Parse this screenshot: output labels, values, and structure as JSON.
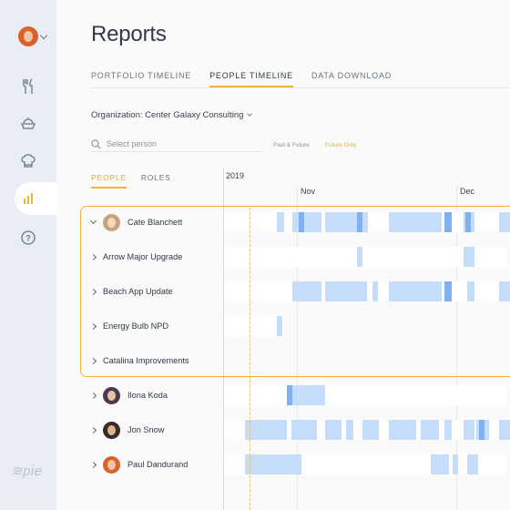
{
  "page": {
    "title": "Reports"
  },
  "colors": {
    "accent": "#f2b233",
    "bar_light": "#c5dcfb",
    "bar_mid": "#a8cbf9",
    "bar_dark": "#7fb1f2"
  },
  "sidebar": {
    "user_avatar": "user-avatar",
    "items": [
      {
        "name": "fork-knife-icon",
        "glyph": "🍴"
      },
      {
        "name": "pie-dish-icon",
        "glyph": "◒"
      },
      {
        "name": "chef-hat-icon",
        "glyph": "♨"
      },
      {
        "name": "reports-bar-chart-icon",
        "glyph": "▮"
      },
      {
        "name": "help-icon",
        "glyph": "?"
      }
    ],
    "logo_text": "pie"
  },
  "tabs": [
    {
      "label": "PORTFOLIO TIMELINE",
      "active": false
    },
    {
      "label": "PEOPLE TIMELINE",
      "active": true
    },
    {
      "label": "DATA DOWNLOAD",
      "active": false
    }
  ],
  "organization": {
    "label": "Organization: Center Galaxy Consulting"
  },
  "search": {
    "placeholder": "Select person"
  },
  "filters": {
    "past_future": "Past & Future",
    "future_only": "Future Only",
    "selected": "Future Only"
  },
  "subtabs": [
    {
      "label": "PEOPLE",
      "active": true
    },
    {
      "label": "ROLES",
      "active": false
    }
  ],
  "timeline": {
    "year": "2019",
    "months": [
      "Nov",
      "Dec"
    ]
  },
  "rows": [
    {
      "label": "Cate Blanchett",
      "type": "person",
      "expanded": true,
      "avatar": "cate-blanchett-avatar"
    },
    {
      "label": "Arrow Major Upgrade",
      "type": "project",
      "expanded": false
    },
    {
      "label": "Beach App Update",
      "type": "project",
      "expanded": false
    },
    {
      "label": "Energy Bulb NPD",
      "type": "project",
      "expanded": false
    },
    {
      "label": "Catalina Improvements",
      "type": "project",
      "expanded": false
    },
    {
      "label": "Ilona Koda",
      "type": "person",
      "expanded": false,
      "avatar": "ilona-koda-avatar"
    },
    {
      "label": "Jon Snow",
      "type": "person",
      "expanded": false,
      "avatar": "jon-snow-avatar"
    },
    {
      "label": "Paul Dandurand",
      "type": "person",
      "expanded": false,
      "avatar": "paul-dandurand-avatar"
    }
  ]
}
